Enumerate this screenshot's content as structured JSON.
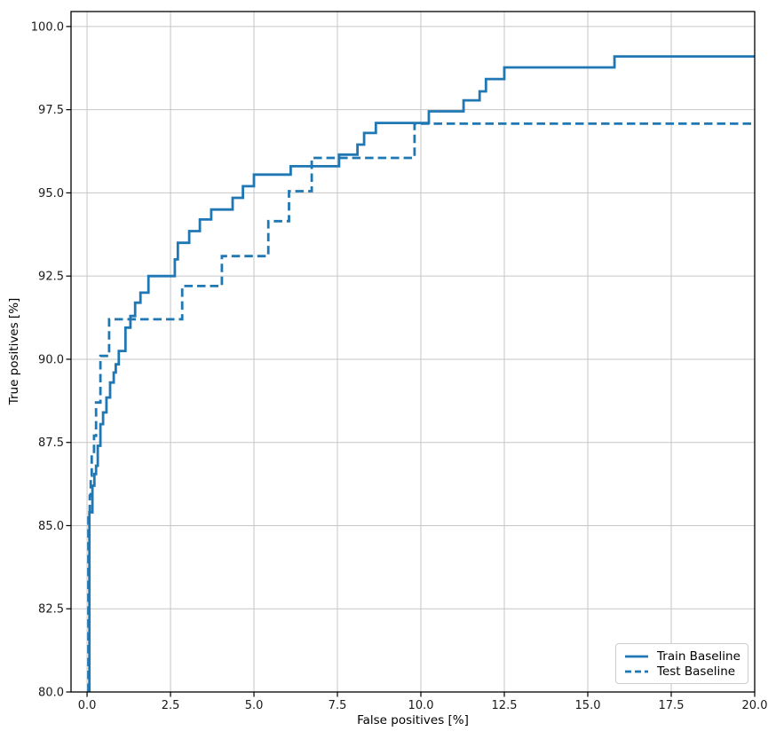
{
  "chart_data": {
    "type": "line",
    "subtype": "step",
    "title": "",
    "xlabel": "False positives [%]",
    "ylabel": "True positives [%]",
    "xlim": [
      -0.48,
      20.0
    ],
    "ylim": [
      80.0,
      100.45
    ],
    "xticks": [
      0.0,
      2.5,
      5.0,
      7.5,
      10.0,
      12.5,
      15.0,
      17.5,
      20.0
    ],
    "xtick_labels": [
      "0.0",
      "2.5",
      "5.0",
      "7.5",
      "10.0",
      "12.5",
      "15.0",
      "17.5",
      "20.0"
    ],
    "yticks": [
      80.0,
      82.5,
      85.0,
      87.5,
      90.0,
      92.5,
      95.0,
      97.5,
      100.0
    ],
    "ytick_labels": [
      "80.0",
      "82.5",
      "85.0",
      "87.5",
      "90.0",
      "92.5",
      "95.0",
      "97.5",
      "100.0"
    ],
    "grid": true,
    "legend_position": "lower right",
    "colors": {
      "line": "#1f77b4",
      "grid": "#c6c6c6",
      "spine": "#000000",
      "tick_text": "#1a1a1a"
    },
    "series": [
      {
        "name": "Train Baseline",
        "style": "solid",
        "color": "#1f77b4",
        "start": [
          0.07,
          80.0
        ],
        "steps": [
          [
            0.07,
            85.4
          ],
          [
            0.16,
            86.2
          ],
          [
            0.22,
            86.55
          ],
          [
            0.27,
            86.8
          ],
          [
            0.32,
            87.4
          ],
          [
            0.4,
            88.05
          ],
          [
            0.48,
            88.4
          ],
          [
            0.58,
            88.85
          ],
          [
            0.69,
            89.3
          ],
          [
            0.8,
            89.6
          ],
          [
            0.86,
            89.85
          ],
          [
            0.95,
            90.25
          ],
          [
            1.15,
            90.95
          ],
          [
            1.3,
            91.3
          ],
          [
            1.44,
            91.7
          ],
          [
            1.6,
            92.0
          ],
          [
            1.84,
            92.5
          ],
          [
            2.63,
            93.0
          ],
          [
            2.72,
            93.5
          ],
          [
            3.06,
            93.85
          ],
          [
            3.38,
            94.2
          ],
          [
            3.72,
            94.5
          ],
          [
            4.36,
            94.85
          ],
          [
            4.67,
            95.2
          ],
          [
            5.0,
            95.55
          ],
          [
            6.1,
            95.8
          ],
          [
            7.55,
            96.15
          ],
          [
            8.1,
            96.45
          ],
          [
            8.3,
            96.8
          ],
          [
            8.65,
            97.1
          ],
          [
            10.24,
            97.45
          ],
          [
            11.28,
            97.78
          ],
          [
            11.76,
            98.05
          ],
          [
            11.95,
            98.42
          ],
          [
            12.5,
            98.77
          ],
          [
            15.8,
            99.1
          ]
        ],
        "end_x": 20.0
      },
      {
        "name": "Test Baseline",
        "style": "dashed",
        "color": "#1f77b4",
        "start": [
          0.04,
          80.0
        ],
        "steps": [
          [
            0.04,
            85.3
          ],
          [
            0.08,
            85.9
          ],
          [
            0.11,
            86.5
          ],
          [
            0.14,
            87.17
          ],
          [
            0.21,
            87.7
          ],
          [
            0.27,
            88.7
          ],
          [
            0.4,
            90.1
          ],
          [
            0.66,
            91.2
          ],
          [
            2.85,
            92.2
          ],
          [
            4.04,
            93.1
          ],
          [
            5.43,
            94.15
          ],
          [
            6.05,
            95.05
          ],
          [
            6.73,
            96.05
          ],
          [
            9.81,
            97.08
          ]
        ],
        "end_x": 20.0
      }
    ]
  }
}
